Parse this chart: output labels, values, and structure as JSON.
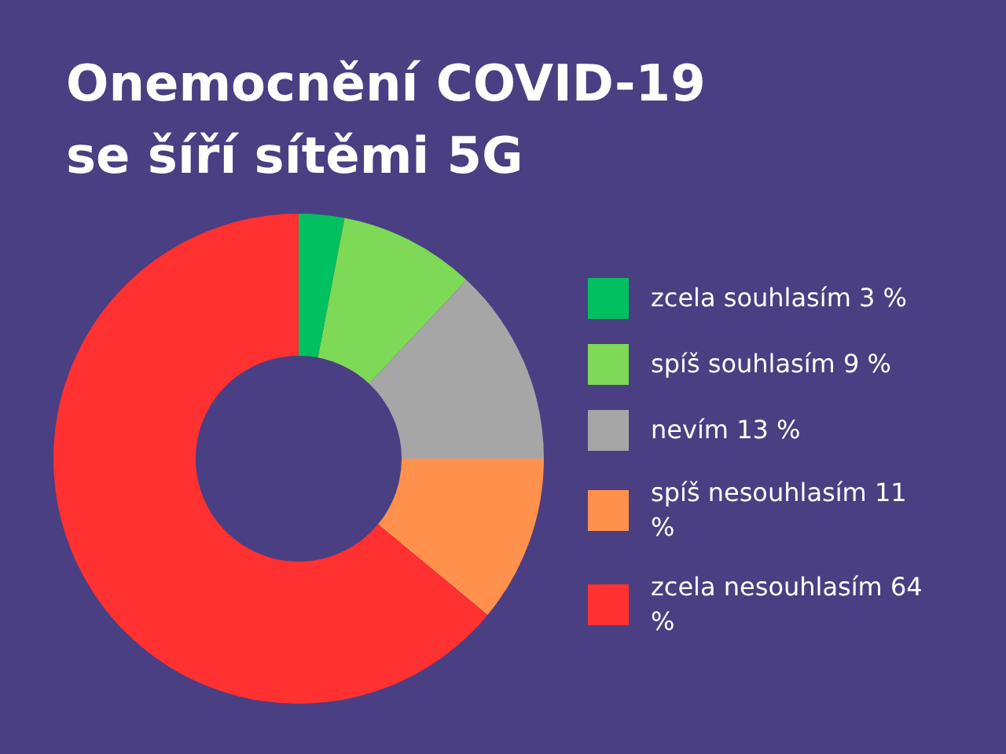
{
  "chart_data": {
    "type": "donut",
    "title": "Onemocnění COVID-19\nse šíří sítěmi 5G",
    "categories": [
      "zcela souhlasím 3 %",
      "spíš souhlasím 9 %",
      "nevím 13 %",
      "spíš nesouhlasím 11 %",
      "zcela nesouhlasím 64 %"
    ],
    "values": [
      3,
      9,
      13,
      11,
      64
    ],
    "colors": [
      "#00c060",
      "#7ed957",
      "#a6a6a6",
      "#ff914d",
      "#ff3131"
    ],
    "legend": "right"
  }
}
